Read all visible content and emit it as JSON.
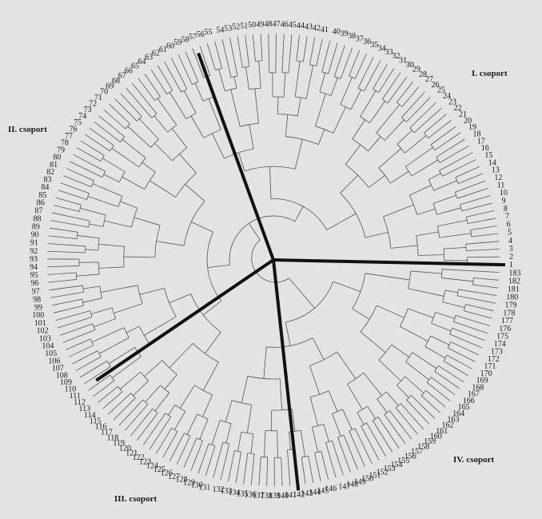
{
  "leaf_count": 183,
  "group_labels": {
    "g1": "I. csoport",
    "g2": "II. csoport",
    "g3": "III. csoport",
    "g4": "IV. csoport"
  },
  "colors": {
    "background": "#e3e3e3",
    "branch": "#555555",
    "divider": "#111111",
    "text": "#1a1a1a"
  }
}
